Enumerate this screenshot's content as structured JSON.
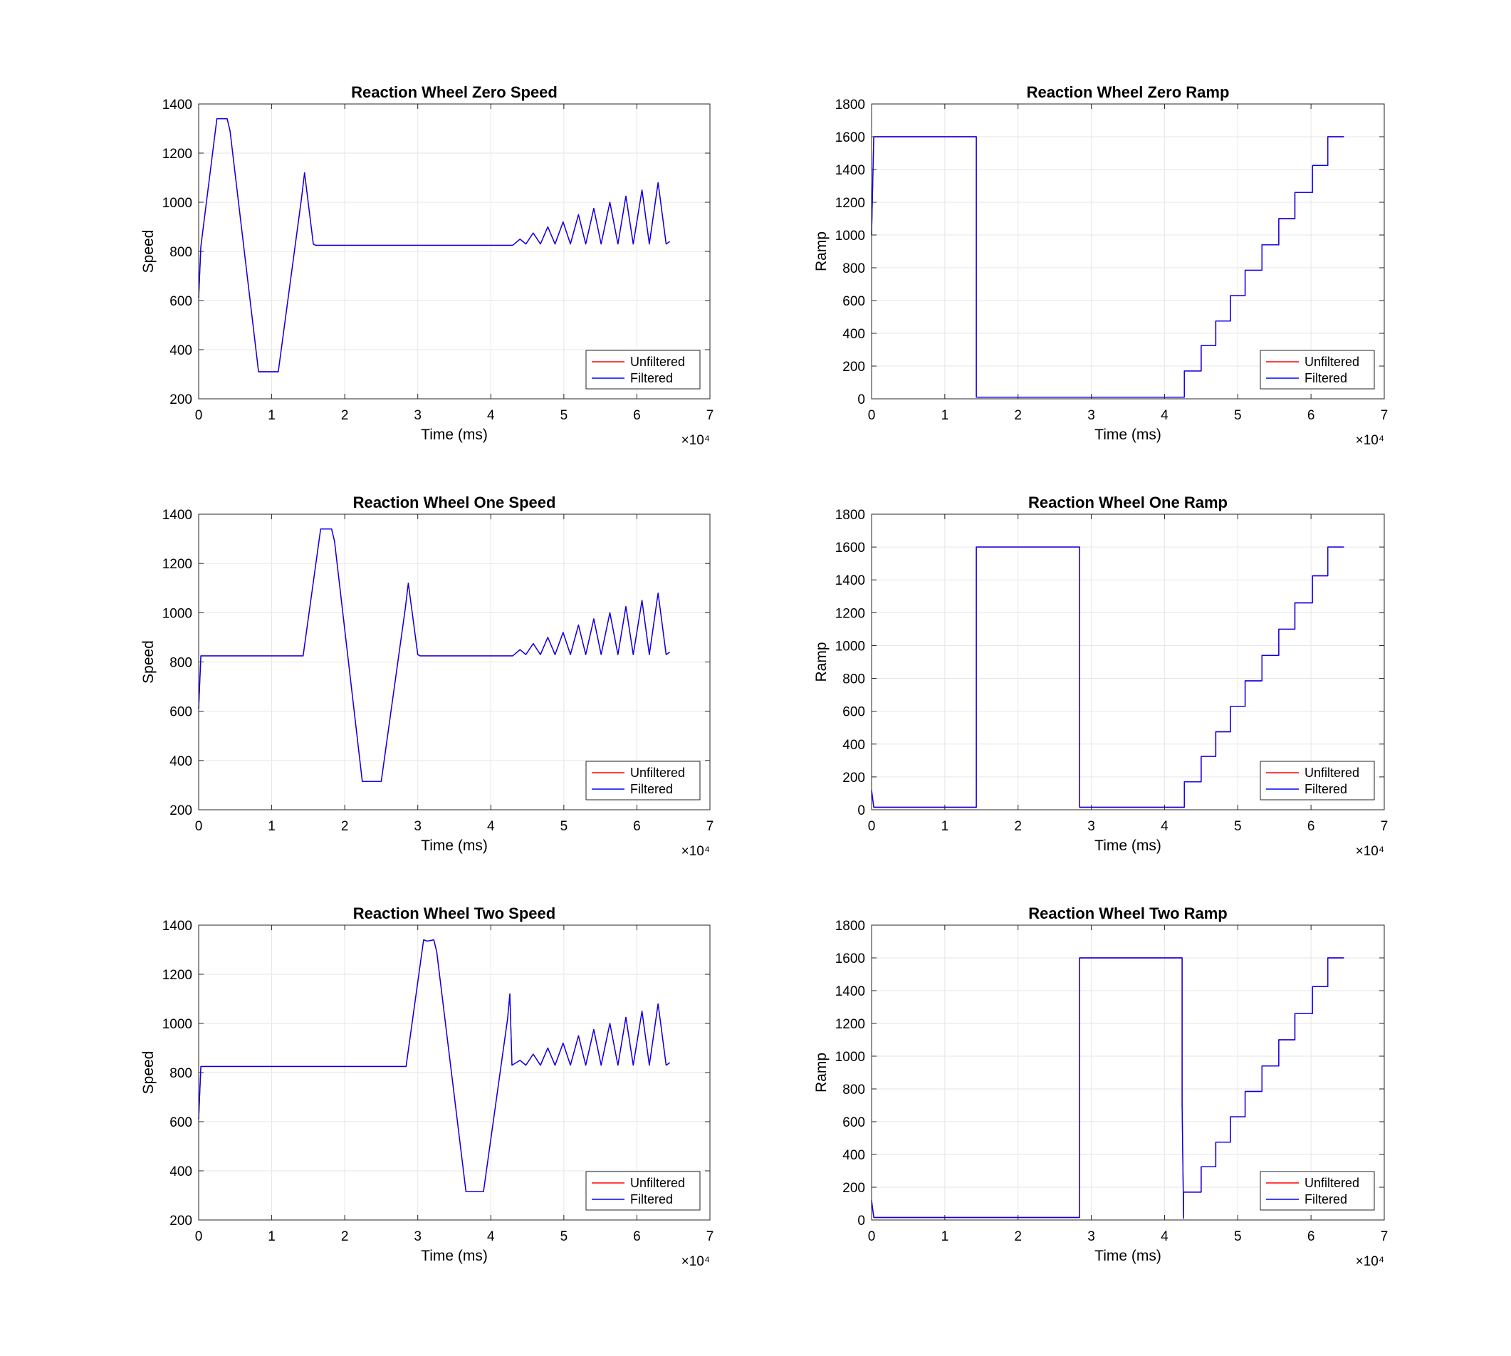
{
  "figure": {
    "background": "#ffffff"
  },
  "legend_colors": {
    "Unfiltered": "#ff0000",
    "Filtered": "#0000ff"
  },
  "chart_data": [
    {
      "type": "line",
      "title": "Reaction Wheel Zero Speed",
      "xlabel": "Time (ms)",
      "ylabel": "Speed",
      "x_exponent_label": "×10⁴",
      "x_scale": 10000,
      "xlim": [
        0,
        70000
      ],
      "ylim": [
        200,
        1400
      ],
      "xticks": [
        0,
        1,
        2,
        3,
        4,
        5,
        6,
        7
      ],
      "yticks": [
        200,
        400,
        600,
        800,
        1000,
        1200,
        1400
      ],
      "grid": true,
      "legend": {
        "location": "bottom-right",
        "entries": [
          "Unfiltered",
          "Filtered"
        ]
      },
      "series": [
        {
          "name": "Unfiltered",
          "color": "#ff0000",
          "x": [
            0,
            300,
            2500,
            3000,
            3900,
            4300,
            8200,
            8500,
            10900,
            14100,
            14500,
            15700,
            16000,
            43000,
            44000,
            44800,
            45800,
            46800,
            47800,
            48800,
            49900,
            50900,
            52000,
            53000,
            54100,
            55100,
            56300,
            57400,
            58500,
            59500,
            60700,
            61700,
            62900,
            64000,
            64500
          ],
          "y": [
            610,
            820,
            1340,
            1340,
            1340,
            1290,
            310,
            310,
            310,
            1020,
            1120,
            830,
            825,
            825,
            850,
            830,
            875,
            830,
            900,
            830,
            920,
            830,
            950,
            830,
            975,
            830,
            1000,
            830,
            1025,
            830,
            1050,
            830,
            1080,
            830,
            840
          ]
        },
        {
          "name": "Filtered",
          "color": "#0000ff",
          "x": [
            0,
            300,
            2500,
            3000,
            3900,
            4300,
            8200,
            8500,
            10900,
            14100,
            14500,
            15700,
            16000,
            43000,
            44000,
            44800,
            45800,
            46800,
            47800,
            48800,
            49900,
            50900,
            52000,
            53000,
            54100,
            55100,
            56300,
            57400,
            58500,
            59500,
            60700,
            61700,
            62900,
            64000,
            64500
          ],
          "y": [
            610,
            820,
            1340,
            1340,
            1340,
            1290,
            310,
            310,
            310,
            1020,
            1120,
            830,
            825,
            825,
            850,
            830,
            875,
            830,
            900,
            830,
            920,
            830,
            950,
            830,
            975,
            830,
            1000,
            830,
            1025,
            830,
            1050,
            830,
            1080,
            830,
            840
          ]
        }
      ]
    },
    {
      "type": "line",
      "title": "Reaction Wheel Zero Ramp",
      "xlabel": "Time (ms)",
      "ylabel": "Ramp",
      "x_exponent_label": "×10⁴",
      "x_scale": 10000,
      "xlim": [
        0,
        70000
      ],
      "ylim": [
        0,
        1800
      ],
      "xticks": [
        0,
        1,
        2,
        3,
        4,
        5,
        6,
        7
      ],
      "yticks": [
        0,
        200,
        400,
        600,
        800,
        1000,
        1200,
        1400,
        1600,
        1800
      ],
      "grid": true,
      "legend": {
        "location": "bottom-right",
        "entries": [
          "Unfiltered",
          "Filtered"
        ]
      },
      "series": [
        {
          "name": "Unfiltered",
          "color": "#ff0000",
          "x": [
            0,
            300,
            300,
            14300,
            14300,
            42700,
            42700,
            45000,
            45000,
            47000,
            47000,
            49000,
            49000,
            51000,
            51000,
            53300,
            53300,
            55600,
            55600,
            57800,
            57800,
            60200,
            60200,
            62300,
            62300,
            64500
          ],
          "y": [
            1000,
            1600,
            1600,
            1600,
            10,
            10,
            170,
            170,
            325,
            325,
            475,
            475,
            630,
            630,
            785,
            785,
            940,
            940,
            1100,
            1100,
            1260,
            1260,
            1425,
            1425,
            1600,
            1600
          ]
        },
        {
          "name": "Filtered",
          "color": "#0000ff",
          "x": [
            0,
            300,
            300,
            14300,
            14300,
            42700,
            42700,
            45000,
            45000,
            47000,
            47000,
            49000,
            49000,
            51000,
            51000,
            53300,
            53300,
            55600,
            55600,
            57800,
            57800,
            60200,
            60200,
            62300,
            62300,
            64500
          ],
          "y": [
            1000,
            1600,
            1600,
            1600,
            10,
            10,
            170,
            170,
            325,
            325,
            475,
            475,
            630,
            630,
            785,
            785,
            940,
            940,
            1100,
            1100,
            1260,
            1260,
            1425,
            1425,
            1600,
            1600
          ]
        }
      ]
    },
    {
      "type": "line",
      "title": "Reaction Wheel One Speed",
      "xlabel": "Time (ms)",
      "ylabel": "Speed",
      "x_exponent_label": "×10⁴",
      "x_scale": 10000,
      "xlim": [
        0,
        70000
      ],
      "ylim": [
        200,
        1400
      ],
      "xticks": [
        0,
        1,
        2,
        3,
        4,
        5,
        6,
        7
      ],
      "yticks": [
        200,
        400,
        600,
        800,
        1000,
        1200,
        1400
      ],
      "grid": true,
      "legend": {
        "location": "bottom-right",
        "entries": [
          "Unfiltered",
          "Filtered"
        ]
      },
      "series": [
        {
          "name": "Unfiltered",
          "color": "#ff0000",
          "x": [
            0,
            300,
            14300,
            16700,
            17300,
            18200,
            18600,
            22400,
            22800,
            25000,
            28300,
            28700,
            30000,
            30300,
            43000,
            44000,
            44800,
            45800,
            46800,
            47800,
            48800,
            49900,
            50900,
            52000,
            53000,
            54100,
            55100,
            56300,
            57400,
            58500,
            59500,
            60700,
            61700,
            62900,
            64000,
            64500
          ],
          "y": [
            610,
            825,
            825,
            1340,
            1340,
            1340,
            1290,
            315,
            315,
            315,
            1020,
            1120,
            830,
            825,
            825,
            850,
            830,
            875,
            830,
            900,
            830,
            920,
            830,
            950,
            830,
            975,
            830,
            1000,
            830,
            1025,
            830,
            1050,
            830,
            1080,
            830,
            840
          ]
        },
        {
          "name": "Filtered",
          "color": "#0000ff",
          "x": [
            0,
            300,
            14300,
            16700,
            17300,
            18200,
            18600,
            22400,
            22800,
            25000,
            28300,
            28700,
            30000,
            30300,
            43000,
            44000,
            44800,
            45800,
            46800,
            47800,
            48800,
            49900,
            50900,
            52000,
            53000,
            54100,
            55100,
            56300,
            57400,
            58500,
            59500,
            60700,
            61700,
            62900,
            64000,
            64500
          ],
          "y": [
            610,
            825,
            825,
            1340,
            1340,
            1340,
            1290,
            315,
            315,
            315,
            1020,
            1120,
            830,
            825,
            825,
            850,
            830,
            875,
            830,
            900,
            830,
            920,
            830,
            950,
            830,
            975,
            830,
            1000,
            830,
            1025,
            830,
            1050,
            830,
            1080,
            830,
            840
          ]
        }
      ]
    },
    {
      "type": "line",
      "title": "Reaction Wheel One Ramp",
      "xlabel": "Time (ms)",
      "ylabel": "Ramp",
      "x_exponent_label": "×10⁴",
      "x_scale": 10000,
      "xlim": [
        0,
        70000
      ],
      "ylim": [
        0,
        1800
      ],
      "xticks": [
        0,
        1,
        2,
        3,
        4,
        5,
        6,
        7
      ],
      "yticks": [
        0,
        200,
        400,
        600,
        800,
        1000,
        1200,
        1400,
        1600,
        1800
      ],
      "grid": true,
      "legend": {
        "location": "bottom-right",
        "entries": [
          "Unfiltered",
          "Filtered"
        ]
      },
      "series": [
        {
          "name": "Unfiltered",
          "color": "#ff0000",
          "x": [
            0,
            300,
            14300,
            14300,
            28400,
            28400,
            42700,
            42700,
            45000,
            45000,
            47000,
            47000,
            49000,
            49000,
            51000,
            51000,
            53300,
            53300,
            55600,
            55600,
            57800,
            57800,
            60200,
            60200,
            62300,
            62300,
            64500
          ],
          "y": [
            120,
            15,
            15,
            1600,
            1600,
            15,
            15,
            170,
            170,
            325,
            325,
            475,
            475,
            630,
            630,
            785,
            785,
            940,
            940,
            1100,
            1100,
            1260,
            1260,
            1425,
            1425,
            1600,
            1600
          ]
        },
        {
          "name": "Filtered",
          "color": "#0000ff",
          "x": [
            0,
            300,
            14300,
            14300,
            28400,
            28400,
            42700,
            42700,
            45000,
            45000,
            47000,
            47000,
            49000,
            49000,
            51000,
            51000,
            53300,
            53300,
            55600,
            55600,
            57800,
            57800,
            60200,
            60200,
            62300,
            62300,
            64500
          ],
          "y": [
            120,
            15,
            15,
            1600,
            1600,
            15,
            15,
            170,
            170,
            325,
            325,
            475,
            475,
            630,
            630,
            785,
            785,
            940,
            940,
            1100,
            1100,
            1260,
            1260,
            1425,
            1425,
            1600,
            1600
          ]
        }
      ]
    },
    {
      "type": "line",
      "title": "Reaction Wheel Two Speed",
      "xlabel": "Time (ms)",
      "ylabel": "Speed",
      "x_exponent_label": "×10⁴",
      "x_scale": 10000,
      "xlim": [
        0,
        70000
      ],
      "ylim": [
        200,
        1400
      ],
      "xticks": [
        0,
        1,
        2,
        3,
        4,
        5,
        6,
        7
      ],
      "yticks": [
        200,
        400,
        600,
        800,
        1000,
        1200,
        1400
      ],
      "grid": true,
      "legend": {
        "location": "bottom-right",
        "entries": [
          "Unfiltered",
          "Filtered"
        ]
      },
      "series": [
        {
          "name": "Unfiltered",
          "color": "#ff0000",
          "x": [
            0,
            300,
            28400,
            30800,
            31300,
            32200,
            32600,
            36600,
            37000,
            39000,
            42300,
            42600,
            42900,
            44000,
            44800,
            45800,
            46800,
            47800,
            48800,
            49900,
            50900,
            52000,
            53000,
            54100,
            55100,
            56300,
            57400,
            58500,
            59500,
            60700,
            61700,
            62900,
            64000,
            64500
          ],
          "y": [
            610,
            825,
            825,
            1340,
            1335,
            1340,
            1290,
            315,
            315,
            315,
            1020,
            1120,
            830,
            850,
            830,
            875,
            830,
            900,
            830,
            920,
            830,
            950,
            830,
            975,
            830,
            1000,
            830,
            1025,
            830,
            1050,
            830,
            1080,
            830,
            840
          ]
        },
        {
          "name": "Filtered",
          "color": "#0000ff",
          "x": [
            0,
            300,
            28400,
            30800,
            31300,
            32200,
            32600,
            36600,
            37000,
            39000,
            42300,
            42600,
            42900,
            44000,
            44800,
            45800,
            46800,
            47800,
            48800,
            49900,
            50900,
            52000,
            53000,
            54100,
            55100,
            56300,
            57400,
            58500,
            59500,
            60700,
            61700,
            62900,
            64000,
            64500
          ],
          "y": [
            610,
            825,
            825,
            1340,
            1335,
            1340,
            1290,
            315,
            315,
            315,
            1020,
            1120,
            830,
            850,
            830,
            875,
            830,
            900,
            830,
            920,
            830,
            950,
            830,
            975,
            830,
            1000,
            830,
            1025,
            830,
            1050,
            830,
            1080,
            830,
            840
          ]
        }
      ]
    },
    {
      "type": "line",
      "title": "Reaction Wheel Two Ramp",
      "xlabel": "Time (ms)",
      "ylabel": "Ramp",
      "x_exponent_label": "×10⁴",
      "x_scale": 10000,
      "xlim": [
        0,
        70000
      ],
      "ylim": [
        0,
        1800
      ],
      "xticks": [
        0,
        1,
        2,
        3,
        4,
        5,
        6,
        7
      ],
      "yticks": [
        0,
        200,
        400,
        600,
        800,
        1000,
        1200,
        1400,
        1600,
        1800
      ],
      "grid": true,
      "legend": {
        "location": "bottom-right",
        "entries": [
          "Unfiltered",
          "Filtered"
        ]
      },
      "series": [
        {
          "name": "Unfiltered",
          "color": "#ff0000",
          "x": [
            0,
            300,
            28400,
            28400,
            42400,
            42400,
            42600,
            42600,
            45000,
            45000,
            47000,
            47000,
            49000,
            49000,
            51000,
            51000,
            53300,
            53300,
            55600,
            55600,
            57800,
            57800,
            60200,
            60200,
            62300,
            62300,
            64500
          ],
          "y": [
            120,
            15,
            15,
            1600,
            1600,
            700,
            10,
            170,
            170,
            325,
            325,
            475,
            475,
            630,
            630,
            785,
            785,
            940,
            940,
            1100,
            1100,
            1260,
            1260,
            1425,
            1425,
            1600,
            1600
          ]
        },
        {
          "name": "Filtered",
          "color": "#0000ff",
          "x": [
            0,
            300,
            28400,
            28400,
            42400,
            42400,
            42600,
            42600,
            45000,
            45000,
            47000,
            47000,
            49000,
            49000,
            51000,
            51000,
            53300,
            53300,
            55600,
            55600,
            57800,
            57800,
            60200,
            60200,
            62300,
            62300,
            64500
          ],
          "y": [
            120,
            15,
            15,
            1600,
            1600,
            700,
            10,
            170,
            170,
            325,
            325,
            475,
            475,
            630,
            630,
            785,
            785,
            940,
            940,
            1100,
            1100,
            1260,
            1260,
            1425,
            1425,
            1600,
            1600
          ]
        }
      ]
    }
  ]
}
